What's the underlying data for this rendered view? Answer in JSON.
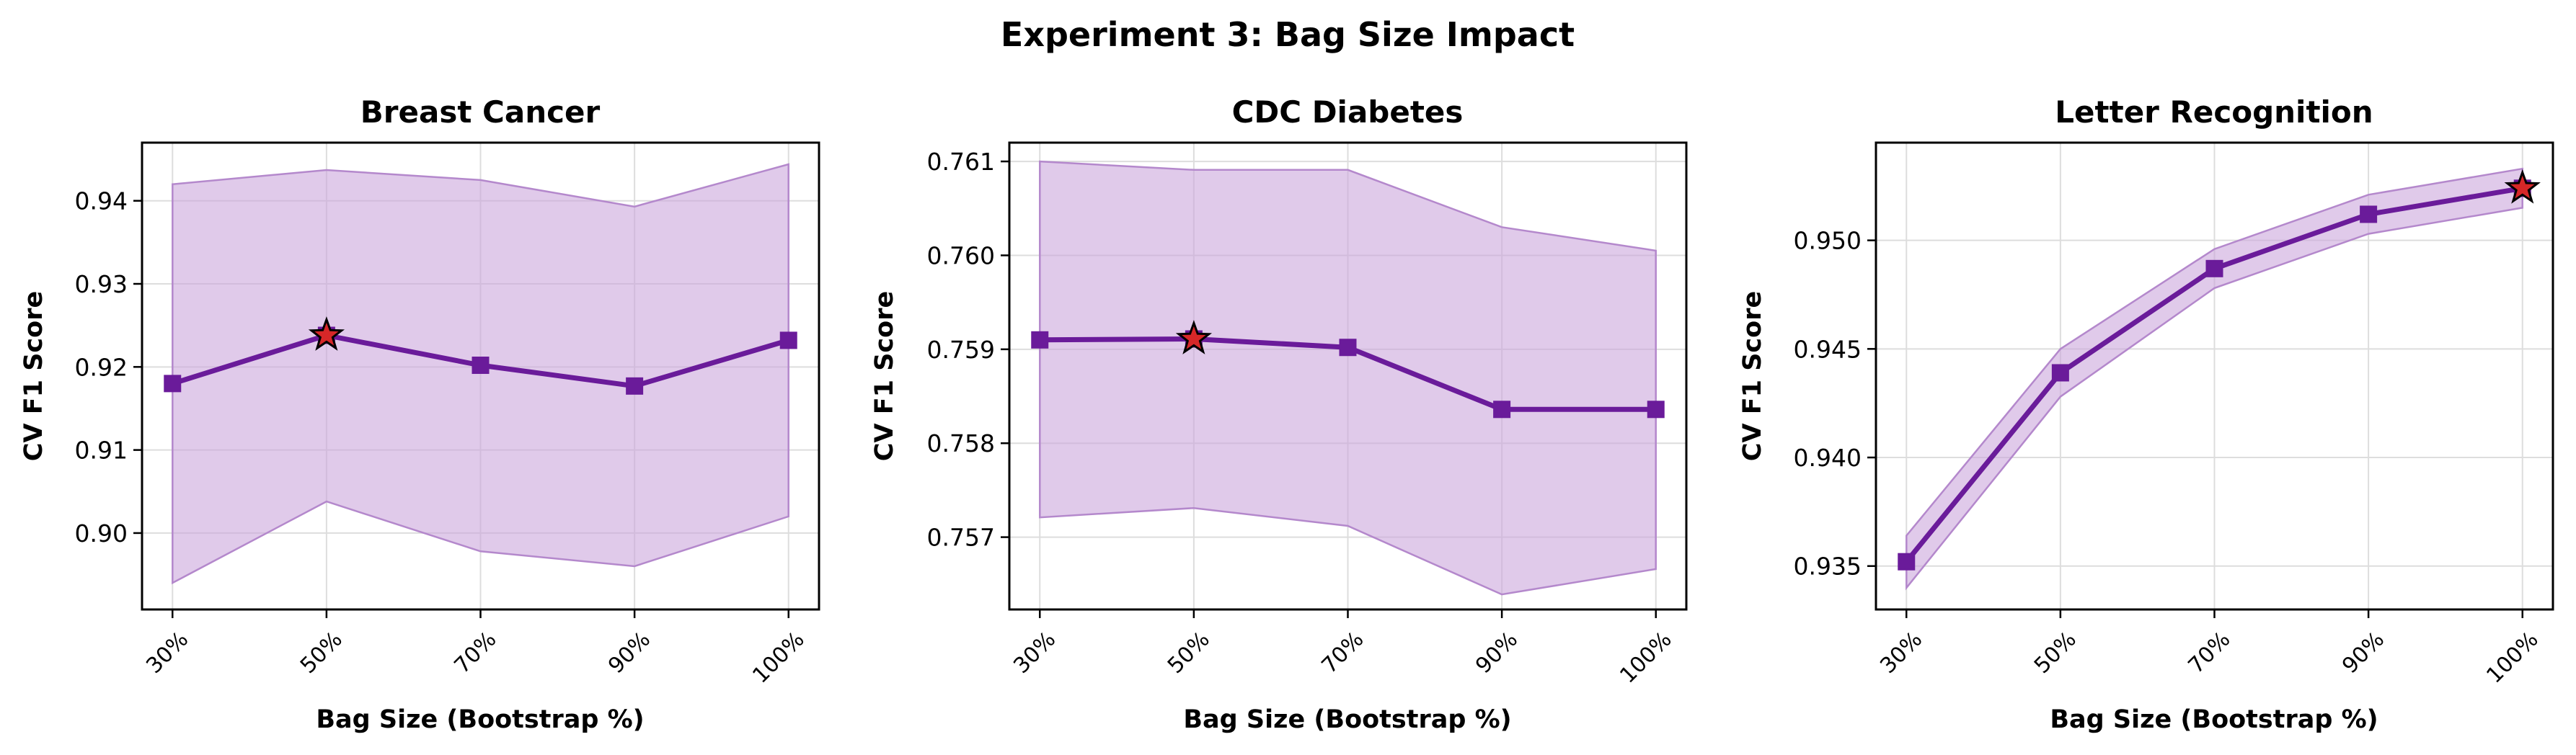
{
  "figure_title": "Experiment 3: Bag Size Impact",
  "colors": {
    "line": "#6a1b9a",
    "band": "#cba6dc",
    "band_edge": "#b488cc",
    "star": "#d62728",
    "grid": "#dddddd"
  },
  "chart_data": [
    {
      "type": "line",
      "title": "Breast Cancer",
      "xlabel": "Bag Size (Bootstrap %)",
      "ylabel": "CV F1 Score",
      "categories": [
        "30%",
        "50%",
        "70%",
        "90%",
        "100%"
      ],
      "series": [
        {
          "values": [
            0.918,
            0.9238,
            0.9202,
            0.9177,
            0.9232
          ],
          "lower": [
            0.894,
            0.9038,
            0.8978,
            0.896,
            0.902
          ],
          "upper": [
            0.942,
            0.9437,
            0.9425,
            0.9393,
            0.9444
          ]
        }
      ],
      "best_index": 1,
      "ylim": [
        0.8908,
        0.947
      ],
      "yticks": [
        0.9,
        0.91,
        0.92,
        0.93,
        0.94
      ],
      "ytick_labels": [
        "0.90",
        "0.91",
        "0.92",
        "0.93",
        "0.94"
      ],
      "grid": true
    },
    {
      "type": "line",
      "title": "CDC Diabetes",
      "xlabel": "Bag Size (Bootstrap %)",
      "ylabel": "CV F1 Score",
      "categories": [
        "30%",
        "50%",
        "70%",
        "90%",
        "100%"
      ],
      "series": [
        {
          "values": [
            0.7591,
            0.75911,
            0.75902,
            0.75836,
            0.75836
          ],
          "lower": [
            0.75721,
            0.75731,
            0.75712,
            0.75639,
            0.75666
          ],
          "upper": [
            0.761,
            0.76091,
            0.76091,
            0.7603,
            0.76005
          ]
        }
      ],
      "best_index": 1,
      "ylim": [
        0.75623,
        0.7612
      ],
      "yticks": [
        0.757,
        0.758,
        0.759,
        0.76,
        0.761
      ],
      "ytick_labels": [
        "0.757",
        "0.758",
        "0.759",
        "0.760",
        "0.761"
      ],
      "grid": true
    },
    {
      "type": "line",
      "title": "Letter Recognition",
      "xlabel": "Bag Size (Bootstrap %)",
      "ylabel": "CV F1 Score",
      "categories": [
        "30%",
        "50%",
        "70%",
        "90%",
        "100%"
      ],
      "series": [
        {
          "values": [
            0.9352,
            0.9439,
            0.9487,
            0.9512,
            0.9524
          ],
          "lower": [
            0.934,
            0.9428,
            0.9478,
            0.9503,
            0.9515
          ],
          "upper": [
            0.9364,
            0.945,
            0.9496,
            0.9521,
            0.9533
          ]
        }
      ],
      "best_index": 4,
      "ylim": [
        0.933,
        0.9545
      ],
      "yticks": [
        0.935,
        0.94,
        0.945,
        0.95
      ],
      "ytick_labels": [
        "0.935",
        "0.940",
        "0.945",
        "0.950"
      ],
      "grid": true
    }
  ]
}
